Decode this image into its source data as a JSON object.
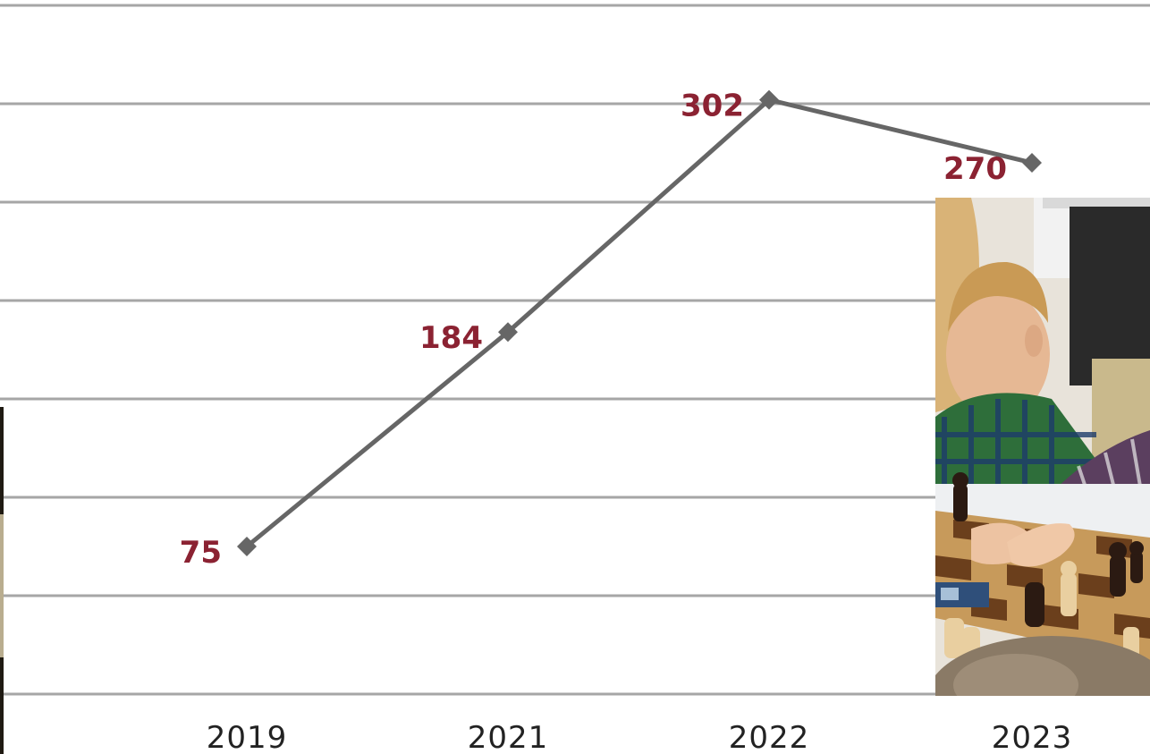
{
  "chart_data": {
    "type": "line",
    "categories": [
      "2019",
      "2021",
      "2022",
      "2023"
    ],
    "series": [
      {
        "values": [
          75,
          184,
          302,
          270
        ]
      }
    ],
    "data_labels": [
      "75",
      "184",
      "302",
      "270"
    ],
    "ylim": [
      0,
      350
    ],
    "grid": true,
    "line_color": "#666666",
    "label_color": "#8b2232",
    "grid_color": "#a6a6a6"
  },
  "photos": {
    "right": "children playing chess",
    "left": "photo edge"
  }
}
